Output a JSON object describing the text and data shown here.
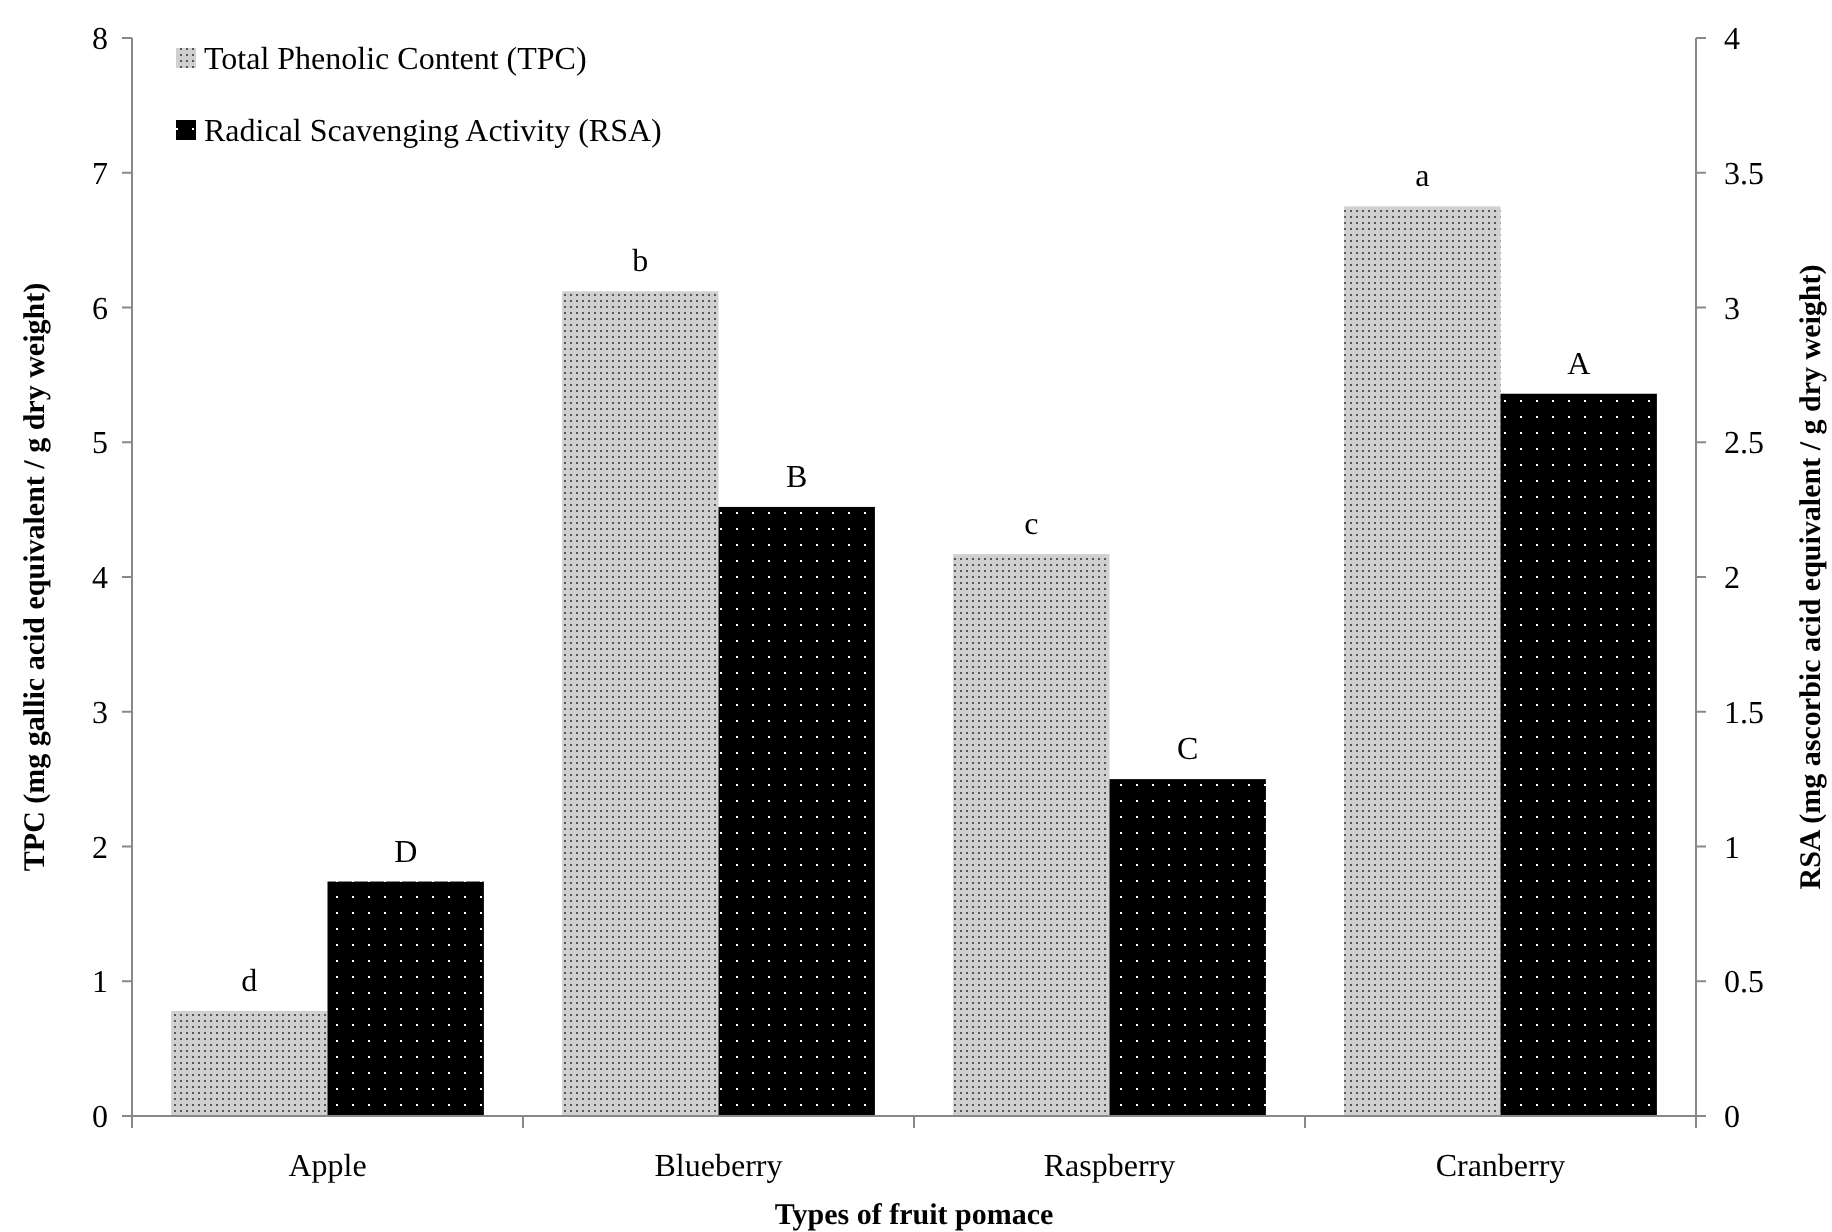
{
  "chart_data": {
    "type": "bar",
    "xlabel": "Types of fruit pomace",
    "ylabel": "TPC (mg gallic acid equivalent / g dry weight)",
    "y2label": "RSA (mg ascorbic acid equivalent / g dry weight)",
    "categories": [
      "Apple",
      "Blueberry",
      "Raspberry",
      "Cranberry"
    ],
    "series": [
      {
        "name": "Total Phenolic Content (TPC)",
        "color": "#d0d0d0",
        "values": [
          0.78,
          6.12,
          4.17,
          6.75
        ],
        "value_labels": [
          "d",
          "b",
          "c",
          "a"
        ]
      },
      {
        "name": "Radical Scavenging Activity (RSA)",
        "color": "#000000",
        "axis": "y2",
        "values": [
          0.87,
          2.26,
          1.25,
          2.68
        ],
        "value_labels": [
          "D",
          "B",
          "C",
          "A"
        ]
      }
    ],
    "ylim": [
      0,
      8
    ],
    "yticks": [
      0,
      1,
      2,
      3,
      4,
      5,
      6,
      7,
      8
    ],
    "y2lim": [
      0,
      4
    ],
    "y2ticks": [
      0,
      0.5,
      1,
      1.5,
      2,
      2.5,
      3,
      3.5,
      4
    ],
    "grid": false,
    "legend": "top left"
  }
}
